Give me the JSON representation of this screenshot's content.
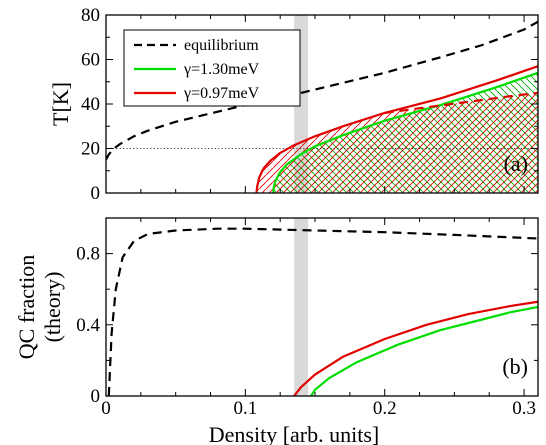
{
  "chart_data": [
    {
      "type": "line",
      "panel_label": "(a)",
      "ylabel": "T[K]",
      "xlim": [
        0,
        0.31
      ],
      "ylim": [
        0,
        80
      ],
      "x_ticks": [
        0,
        0.1,
        0.2,
        0.3
      ],
      "y_ticks": [
        0,
        20,
        40,
        60,
        80
      ],
      "reference_line_y": 20,
      "shaded_x_range": [
        0.135,
        0.145
      ],
      "legend_position": "top-left",
      "legend": [
        {
          "label": "equilibrium",
          "color": "#000000",
          "style": "dashed"
        },
        {
          "label": "γ=1.30meV",
          "color": "#00dd00",
          "style": "solid"
        },
        {
          "label": "γ=0.97meV",
          "color": "#e00000",
          "style": "solid"
        }
      ],
      "series": [
        {
          "name": "equilibrium",
          "color": "#000000",
          "style": "dashed",
          "x": [
            0.0,
            0.002,
            0.005,
            0.01,
            0.02,
            0.03,
            0.05,
            0.07,
            0.1,
            0.13,
            0.16,
            0.2,
            0.24,
            0.27,
            0.3,
            0.31
          ],
          "y": [
            15.0,
            17.3,
            19.7,
            22.0,
            25.5,
            28.0,
            32.0,
            35.0,
            39.5,
            43.5,
            48.0,
            54.0,
            61.0,
            66.5,
            73.5,
            77.0
          ]
        },
        {
          "name": "γ=1.30meV",
          "color": "#00dd00",
          "style": "solid",
          "x": [
            0.12,
            0.1205,
            0.122,
            0.125,
            0.13,
            0.14,
            0.15,
            0.17,
            0.2,
            0.24,
            0.28,
            0.31
          ],
          "y": [
            0.0,
            3.0,
            6.0,
            9.5,
            13.0,
            17.5,
            21.0,
            26.0,
            32.5,
            39.5,
            47.5,
            54.0
          ]
        },
        {
          "name": "γ=0.97meV",
          "color": "#e00000",
          "style": "solid",
          "x": [
            0.108,
            0.1085,
            0.11,
            0.113,
            0.118,
            0.125,
            0.135,
            0.15,
            0.17,
            0.2,
            0.24,
            0.28,
            0.31
          ],
          "y": [
            0.0,
            3.0,
            7.0,
            11.0,
            14.5,
            18.0,
            21.5,
            25.5,
            30.0,
            36.0,
            42.5,
            50.5,
            57.0
          ]
        },
        {
          "name": "γ=0.97meV (dashed continuation)",
          "color": "#e00000",
          "style": "dashed",
          "x": [
            0.2,
            0.23,
            0.26,
            0.29,
            0.31
          ],
          "y": [
            36.0,
            38.5,
            41.0,
            43.5,
            45.0
          ]
        }
      ]
    },
    {
      "type": "line",
      "panel_label": "(b)",
      "xlabel": "Density [arb. units]",
      "ylabel": "QC fraction (theory)",
      "ylabel_lines": [
        "QC fraction",
        "(theory)"
      ],
      "xlim": [
        0,
        0.31
      ],
      "ylim": [
        0,
        1.0
      ],
      "x_ticks": [
        0,
        0.1,
        0.2,
        0.3
      ],
      "y_ticks": [
        0,
        0.4,
        0.8
      ],
      "shaded_x_range": [
        0.135,
        0.145
      ],
      "series": [
        {
          "name": "equilibrium",
          "color": "#000000",
          "style": "dashed",
          "x": [
            0.002,
            0.004,
            0.007,
            0.012,
            0.02,
            0.03,
            0.05,
            0.08,
            0.1,
            0.15,
            0.2,
            0.25,
            0.31
          ],
          "y": [
            0.0,
            0.35,
            0.6,
            0.78,
            0.87,
            0.91,
            0.93,
            0.94,
            0.94,
            0.93,
            0.92,
            0.905,
            0.885
          ]
        },
        {
          "name": "γ=0.97meV",
          "color": "#e00000",
          "style": "solid",
          "x": [
            0.135,
            0.14,
            0.15,
            0.17,
            0.2,
            0.23,
            0.26,
            0.29,
            0.31
          ],
          "y": [
            0.0,
            0.05,
            0.12,
            0.22,
            0.32,
            0.4,
            0.46,
            0.505,
            0.53
          ]
        },
        {
          "name": "γ=1.30meV",
          "color": "#00dd00",
          "style": "solid",
          "x": [
            0.147,
            0.15,
            0.16,
            0.18,
            0.21,
            0.24,
            0.27,
            0.29,
            0.31
          ],
          "y": [
            0.0,
            0.035,
            0.1,
            0.19,
            0.29,
            0.37,
            0.43,
            0.47,
            0.5
          ]
        }
      ]
    }
  ]
}
